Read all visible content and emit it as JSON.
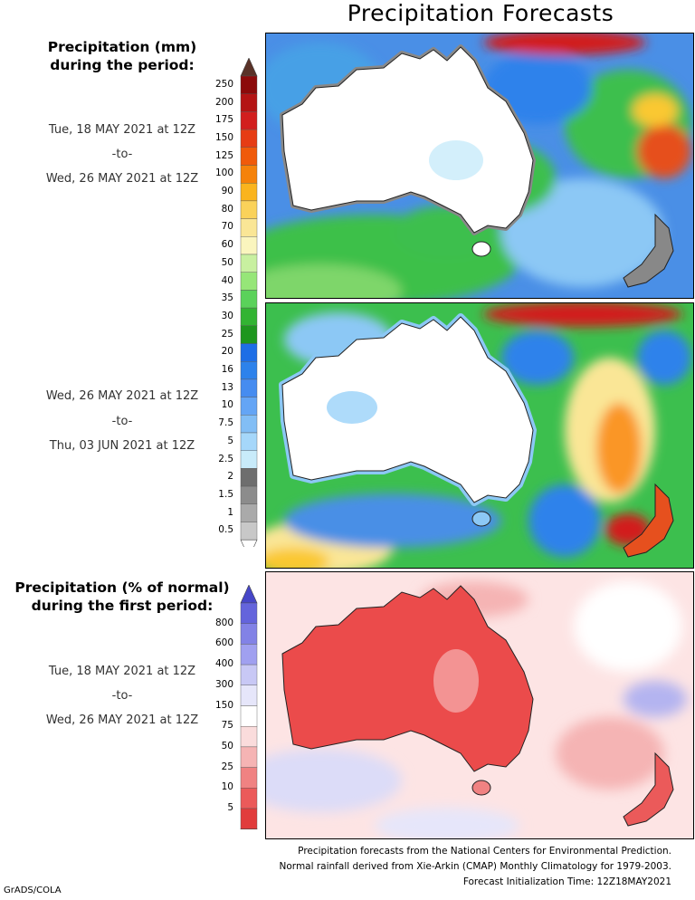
{
  "title": "Precipitation Forecasts",
  "mm_legend": {
    "title_line1": "Precipitation (mm)",
    "title_line2": "during the period:",
    "ticks": [
      "250",
      "200",
      "175",
      "150",
      "125",
      "100",
      "90",
      "80",
      "70",
      "60",
      "50",
      "40",
      "35",
      "30",
      "25",
      "20",
      "16",
      "13",
      "10",
      "7.5",
      "5",
      "2.5",
      "2",
      "1.5",
      "1",
      "0.5"
    ],
    "colors": [
      "#8c0a0a",
      "#b41414",
      "#d21e1e",
      "#e63c14",
      "#f05a0a",
      "#f5820a",
      "#fab41e",
      "#fad25a",
      "#fae696",
      "#faf5be",
      "#c8f0a0",
      "#96e678",
      "#5ad25a",
      "#32b432",
      "#1e961e",
      "#1e6ee6",
      "#2d82eb",
      "#468cf0",
      "#64a5f5",
      "#82bef5",
      "#a5d7fa",
      "#c8ebfa",
      "#6e6e6e",
      "#8c8c8c",
      "#aaaaaa",
      "#c8c8c8"
    ],
    "top_cap": "#5a3228"
  },
  "period1": {
    "start": "Tue, 18 MAY 2021 at 12Z",
    "sep": "-to-",
    "end": "Wed, 26 MAY 2021 at 12Z"
  },
  "period2": {
    "start": "Wed, 26 MAY 2021 at 12Z",
    "sep": "-to-",
    "end": "Thu, 03 JUN 2021 at 12Z"
  },
  "pct_legend": {
    "title_line1": "Precipitation (% of normal)",
    "title_line2": "during the first period:",
    "ticks": [
      "800",
      "600",
      "400",
      "300",
      "150",
      "75",
      "50",
      "25",
      "10",
      "5"
    ],
    "colors": [
      "#6464dc",
      "#8282e6",
      "#a0a0f0",
      "#c8c8f5",
      "#e6e6fa",
      "#ffffff",
      "#fadcdc",
      "#f5b4b4",
      "#f08282",
      "#eb5a5a",
      "#e13c3c"
    ],
    "top_cap": "#4646c8",
    "bottom_cap": "#e63232"
  },
  "period3": {
    "start": "Tue, 18 MAY 2021 at 12Z",
    "sep": "-to-",
    "end": "Wed, 26 MAY 2021 at 12Z"
  },
  "footer": {
    "line1": "Precipitation forecasts from the National Centers for Environmental Prediction.",
    "line2": "Normal rainfall derived from Xie-Arkin (CMAP) Monthly Climatology for 1979-2003.",
    "line3": "Forecast Initialization Time: 12Z18MAY2021"
  },
  "credit": "GrADS/COLA"
}
